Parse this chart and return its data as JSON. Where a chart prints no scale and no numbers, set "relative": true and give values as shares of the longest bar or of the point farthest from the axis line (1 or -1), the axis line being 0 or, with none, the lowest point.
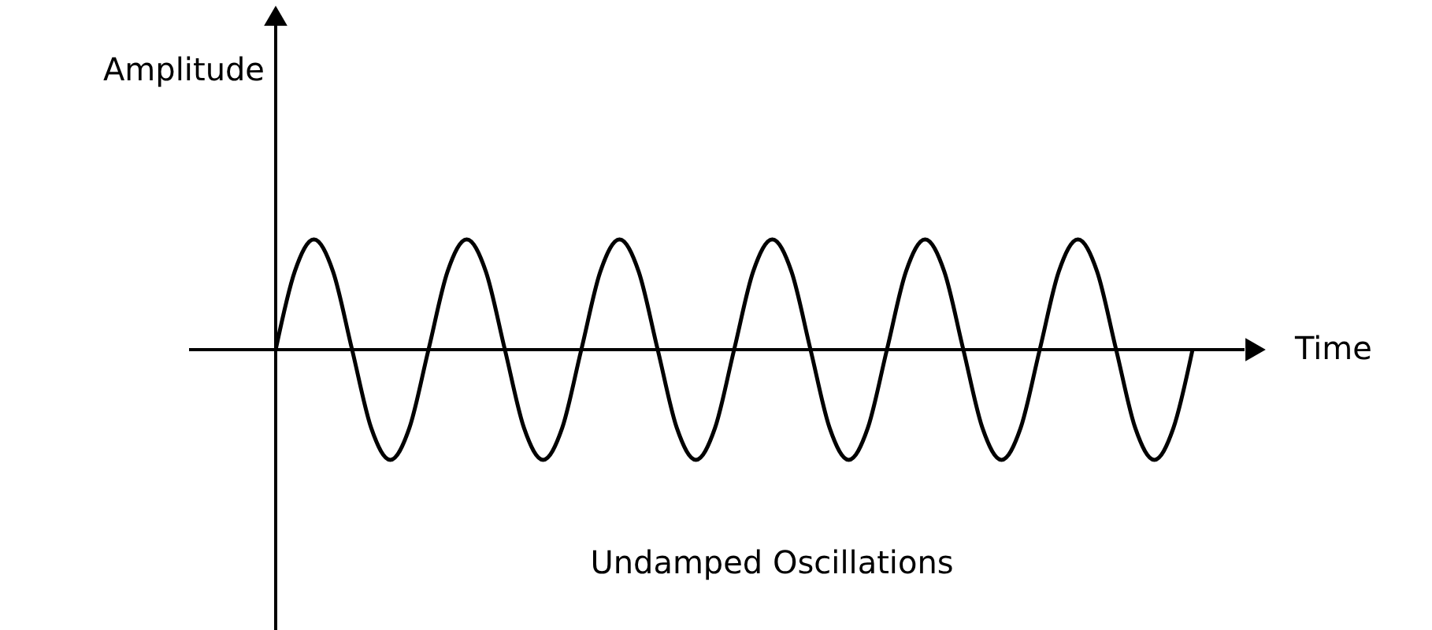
{
  "chart_data": {
    "type": "line",
    "relative": true,
    "color": "#000000",
    "line_style": "solid",
    "xlabel": "Time",
    "ylabel": "Amplitude",
    "annotations": [
      "Undamped Oscillations"
    ],
    "categories": [
      null,
      null,
      null,
      null,
      null,
      null,
      null,
      null,
      null,
      null,
      null,
      null,
      null,
      null,
      null,
      null,
      null,
      null,
      null,
      null,
      null,
      null,
      null,
      null,
      null,
      null,
      null,
      null,
      null,
      null,
      null,
      null,
      null,
      null,
      null,
      null,
      null,
      null,
      null,
      null,
      null,
      null,
      null,
      null,
      null,
      null,
      null,
      null,
      null
    ],
    "values": [
      0,
      0.71,
      1,
      0.71,
      0,
      -0.71,
      -1,
      -0.71,
      0,
      0.71,
      1,
      0.71,
      0,
      -0.71,
      -1,
      -0.71,
      0,
      0.71,
      1,
      0.71,
      0,
      -0.71,
      -1,
      -0.71,
      0,
      0.71,
      1,
      0.71,
      0,
      -0.71,
      -1,
      -0.71,
      0,
      0.71,
      1,
      0.71,
      0,
      -0.71,
      -1,
      -0.71,
      0,
      0.71,
      1,
      0.71,
      0,
      -0.71,
      -1,
      -0.71,
      0
    ]
  }
}
